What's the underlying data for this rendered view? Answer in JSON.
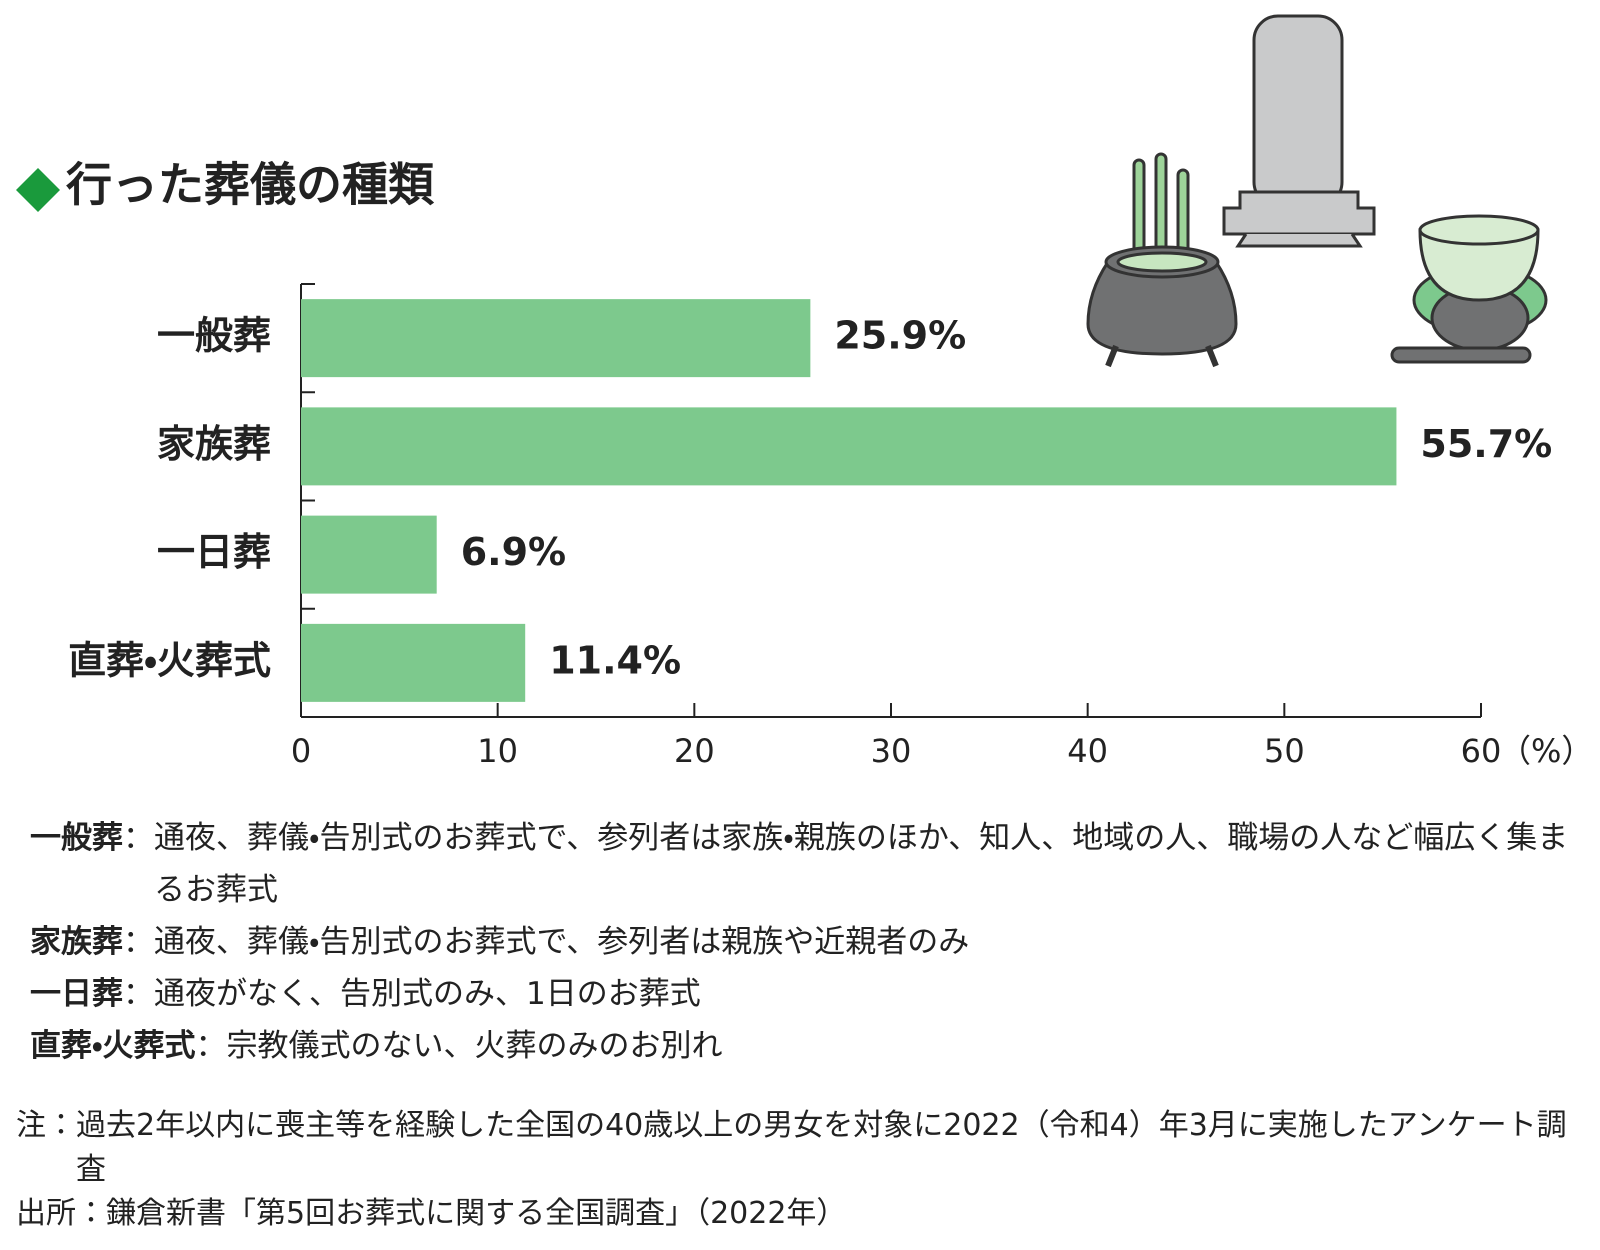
{
  "chart_data": {
    "type": "bar",
    "orientation": "horizontal",
    "title": "行った葬儀の種類",
    "categories": [
      "一般葬",
      "家族葬",
      "一日葬",
      "直葬・火葬式"
    ],
    "values": [
      25.9,
      55.7,
      6.9,
      11.4
    ],
    "value_labels": [
      "25.9%",
      "55.7%",
      "6.9%",
      "11.4%"
    ],
    "color": "#7dc98d",
    "xlim": [
      0,
      60
    ],
    "xticks": [
      0,
      10,
      20,
      30,
      40,
      50,
      60
    ],
    "x_unit": "（%）"
  },
  "definition_separator": "：",
  "definitions": [
    {
      "term": "一般葬",
      "text": "通夜、葬儀・告別式のお葬式で、参列者は家族・親族のほか、知人、地域の人、職場の人など幅広く集まるお葬式"
    },
    {
      "term": "家族葬",
      "text": "通夜、葬儀・告別式のお葬式で、参列者は親族や近親者のみ"
    },
    {
      "term": "一日葬",
      "text": "通夜がなく、告別式のみ、1日のお葬式"
    },
    {
      "term": "直葬・火葬式",
      "text": "宗教儀式のない、火葬のみのお別れ"
    }
  ],
  "notes": [
    {
      "label": "注：",
      "text": "過去2年以内に喪主等を経験した全国の40歳以上の男女を対象に2022（令和4）年3月に実施したアンケート調査"
    },
    {
      "label": "出所：",
      "text": "鎌倉新書「第5回お葬式に関する全国調査」（2022年）"
    }
  ]
}
